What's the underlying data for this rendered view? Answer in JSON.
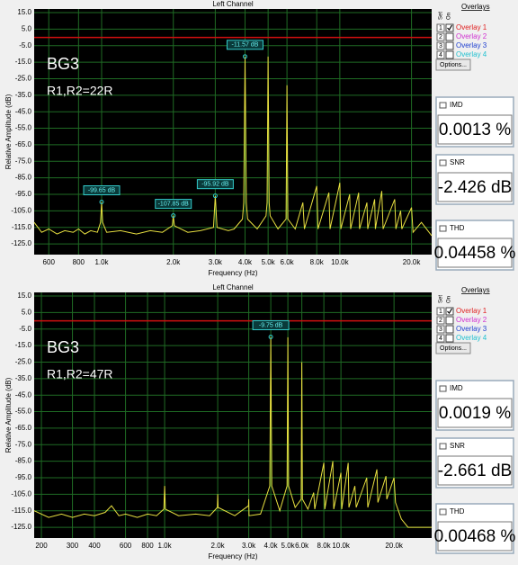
{
  "panels": [
    {
      "chart": {
        "type": "line",
        "title": "Left Channel",
        "x_label": "Frequency (Hz)",
        "y_label": "Relative Amplitude (dB)",
        "log_x": true,
        "grid": true,
        "xlim": [
          521,
          24300
        ],
        "ylim": [
          -131.5,
          17.2
        ],
        "xticks": [
          600,
          800,
          {
            "value": 1000,
            "label": "1.0k"
          },
          {
            "value": 2000,
            "label": "2.0k"
          },
          {
            "value": 3000,
            "label": "3.0k"
          },
          {
            "value": 4000,
            "label": "4.0k"
          },
          {
            "value": 5000,
            "label": "5.0k"
          },
          {
            "value": 6000,
            "label": "6.0k"
          },
          {
            "value": 8000,
            "label": "8.0k"
          },
          {
            "value": 10000,
            "label": "10.0k"
          },
          {
            "value": 20000,
            "label": "20.0k"
          }
        ],
        "yticks": [
          {
            "value": 15,
            "label": "15.0"
          },
          {
            "value": 5,
            "label": "5.0"
          },
          {
            "value": -5,
            "label": "-5.0"
          },
          {
            "value": -15,
            "label": "-15.0"
          },
          {
            "value": -25,
            "label": "-25.0"
          },
          {
            "value": -35,
            "label": "-35.0"
          },
          {
            "value": -45,
            "label": "-45.0"
          },
          {
            "value": -55,
            "label": "-55.0"
          },
          {
            "value": -65,
            "label": "-65.0"
          },
          {
            "value": -75,
            "label": "-75.0"
          },
          {
            "value": -85,
            "label": "-85.0"
          },
          {
            "value": -95,
            "label": "-95.0"
          },
          {
            "value": -105,
            "label": "-105.0"
          },
          {
            "value": -115,
            "label": "-115.0"
          },
          {
            "value": -125,
            "label": "-125.0"
          }
        ],
        "reference_line": {
          "value": 0,
          "color": "#d01010"
        },
        "color": "#e8e040",
        "x": [
          521,
          560,
          600,
          650,
          700,
          760,
          800,
          850,
          900,
          960,
          990,
          1000,
          1010,
          1050,
          1200,
          1400,
          1600,
          1800,
          1980,
          2000,
          2020,
          2300,
          2600,
          2950,
          3000,
          3050,
          3400,
          3600,
          3900,
          3950,
          4000,
          4050,
          4100,
          4500,
          4900,
          4950,
          5000,
          5050,
          5100,
          5500,
          5950,
          6000,
          6050,
          6500,
          7000,
          7100,
          8000,
          8100,
          9000,
          9100,
          10000,
          10100,
          11000,
          11100,
          12000,
          12100,
          13000,
          13100,
          14000,
          14100,
          15000,
          15200,
          17000,
          17200,
          18000,
          18200,
          20000,
          20300,
          22000,
          24300
        ],
        "values": [
          -112,
          -118,
          -116,
          -119,
          -117,
          -118,
          -116,
          -119,
          -117,
          -118,
          -112,
          -99.65,
          -112,
          -118,
          -117,
          -119,
          -117,
          -118,
          -114,
          -107.85,
          -114,
          -118,
          -117,
          -115,
          -95.92,
          -115,
          -117,
          -116,
          -110,
          -100,
          -11.57,
          -100,
          -110,
          -116,
          -108,
          -100,
          -11.6,
          -100,
          -108,
          -116,
          -110,
          -29,
          -110,
          -116,
          -100,
          -116,
          -90,
          -116,
          -94,
          -116,
          -88,
          -116,
          -95,
          -116,
          -94,
          -116,
          -100,
          -116,
          -98,
          -116,
          -93,
          -116,
          -98,
          -116,
          -105,
          -116,
          -103,
          -118,
          -112,
          -120
        ],
        "annotations": [
          {
            "text": "-99.65 dB",
            "x": 1000,
            "y": -99.65
          },
          {
            "text": "-107.85 dB",
            "x": 2000,
            "y": -107.85
          },
          {
            "text": "-95.92 dB",
            "x": 3000,
            "y": -95.92
          },
          {
            "text": "-11.57 dB",
            "x": 4000,
            "y": -11.57
          }
        ],
        "notes": [
          "BG3",
          "R1,R2=22R"
        ]
      },
      "readouts": [
        {
          "name": "IMD",
          "value": "0.0013 %"
        },
        {
          "name": "SNR",
          "value": "-2.426 dB"
        },
        {
          "name": "THD",
          "value": "0.04458 %"
        }
      ]
    },
    {
      "chart": {
        "type": "line",
        "title": "Left Channel",
        "x_label": "Frequency (Hz)",
        "y_label": "Relative Amplitude (dB)",
        "log_x": true,
        "grid": true,
        "xlim": [
          182,
          32700
        ],
        "ylim": [
          -131.5,
          17.2
        ],
        "xticks": [
          200,
          300,
          400,
          600,
          800,
          {
            "value": 1000,
            "label": "1.0k"
          },
          {
            "value": 2000,
            "label": "2.0k"
          },
          {
            "value": 3000,
            "label": "3.0k"
          },
          {
            "value": 4000,
            "label": "4.0k"
          },
          {
            "value": 5000,
            "label": "5.0k"
          },
          {
            "value": 6000,
            "label": "6.0k"
          },
          {
            "value": 8000,
            "label": "8.0k"
          },
          {
            "value": 10000,
            "label": "10.0k"
          },
          {
            "value": 20000,
            "label": "20.0k"
          }
        ],
        "yticks": [
          {
            "value": 15,
            "label": "15.0"
          },
          {
            "value": 5,
            "label": "5.0"
          },
          {
            "value": -5,
            "label": "-5.0"
          },
          {
            "value": -15,
            "label": "-15.0"
          },
          {
            "value": -25,
            "label": "-25.0"
          },
          {
            "value": -35,
            "label": "-35.0"
          },
          {
            "value": -45,
            "label": "-45.0"
          },
          {
            "value": -55,
            "label": "-55.0"
          },
          {
            "value": -65,
            "label": "-65.0"
          },
          {
            "value": -75,
            "label": "-75.0"
          },
          {
            "value": -85,
            "label": "-85.0"
          },
          {
            "value": -95,
            "label": "-95.0"
          },
          {
            "value": -105,
            "label": "-105.0"
          },
          {
            "value": -115,
            "label": "-115.0"
          },
          {
            "value": -125,
            "label": "-125.0"
          }
        ],
        "reference_line": {
          "value": 0,
          "color": "#d01010"
        },
        "color": "#e8e040",
        "x": [
          182,
          220,
          260,
          300,
          350,
          400,
          460,
          500,
          550,
          600,
          700,
          800,
          900,
          990,
          1000,
          1010,
          1200,
          1500,
          1800,
          1990,
          2000,
          2010,
          2500,
          2990,
          3000,
          3010,
          3500,
          3950,
          4000,
          4050,
          4500,
          4950,
          5000,
          5050,
          5500,
          5950,
          6000,
          6050,
          6500,
          7000,
          7100,
          8000,
          8100,
          9000,
          9100,
          10000,
          10100,
          11000,
          11100,
          12000,
          12200,
          14000,
          14200,
          16000,
          16200,
          18000,
          18200,
          20000,
          20400,
          22000,
          24000,
          32700
        ],
        "values": [
          -115,
          -119,
          -117,
          -119,
          -117,
          -118,
          -116,
          -112,
          -118,
          -117,
          -119,
          -117,
          -118,
          -114,
          -100,
          -114,
          -118,
          -117,
          -118,
          -113,
          -105,
          -113,
          -118,
          -112,
          -108,
          -118,
          -117,
          -100,
          -9.75,
          -100,
          -115,
          -100,
          -10,
          -100,
          -113,
          -108,
          -25,
          -108,
          -114,
          -104,
          -114,
          -86,
          -114,
          -85,
          -114,
          -92,
          -114,
          -86,
          -113,
          -100,
          -113,
          -95,
          -113,
          -90,
          -110,
          -94,
          -108,
          -95,
          -110,
          -120,
          -125,
          -125
        ],
        "annotations": [
          {
            "text": "-9.75 dB",
            "x": 4000,
            "y": -9.75
          }
        ],
        "notes": [
          "BG3",
          "R1,R2=47R"
        ]
      },
      "readouts": [
        {
          "name": "IMD",
          "value": "0.0019 %"
        },
        {
          "name": "SNR",
          "value": "-2.661 dB"
        },
        {
          "name": "THD",
          "value": "0.00468 %"
        }
      ]
    }
  ],
  "overlays": {
    "title": "Overlays",
    "col_set": "Set",
    "col_on": "On",
    "button": "Options...",
    "items": [
      {
        "num": "1",
        "label": "Overlay 1",
        "checked": true,
        "color": "#e02020"
      },
      {
        "num": "2",
        "label": "Overlay 2",
        "checked": false,
        "color": "#d030d0"
      },
      {
        "num": "3",
        "label": "Overlay 3",
        "checked": false,
        "color": "#2040d0"
      },
      {
        "num": "4",
        "label": "Overlay 4",
        "checked": false,
        "color": "#20c0d0"
      }
    ]
  }
}
